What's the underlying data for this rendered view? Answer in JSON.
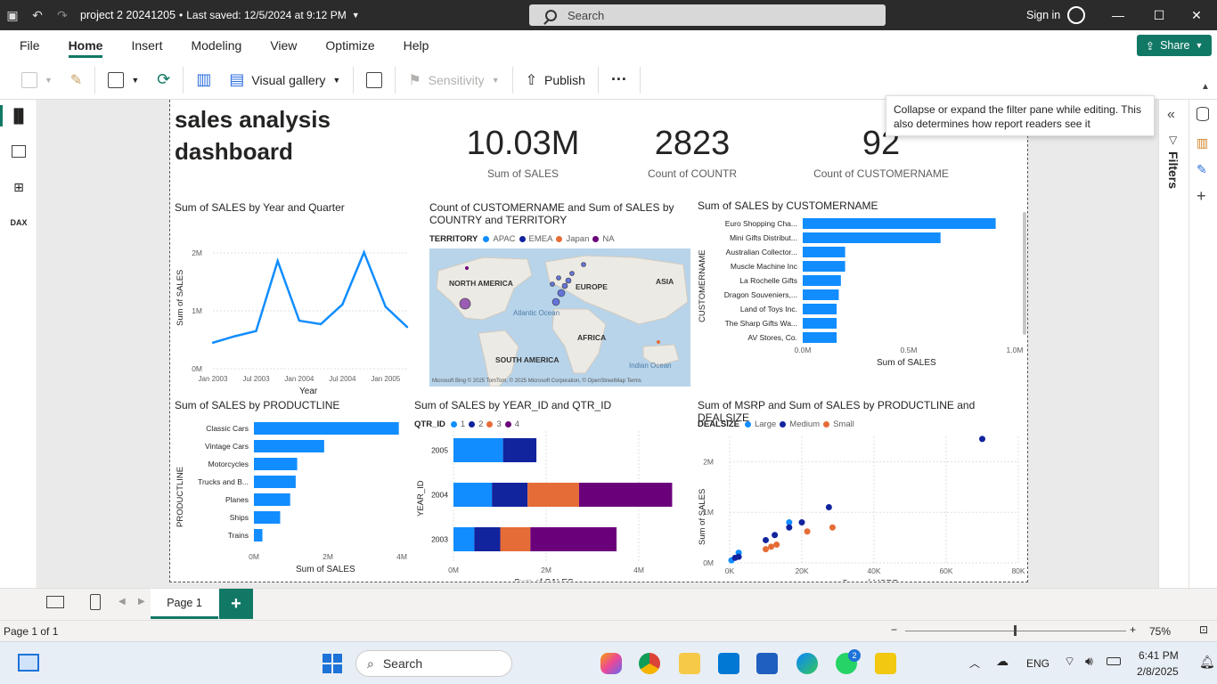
{
  "window": {
    "title": "project 2 20241205",
    "saved": "Last saved: 12/5/2024 at 9:12 PM",
    "search_placeholder": "Search",
    "signin": "Sign in"
  },
  "menu": [
    "File",
    "Home",
    "Insert",
    "Modeling",
    "View",
    "Optimize",
    "Help"
  ],
  "share_label": "Share",
  "toolbar": {
    "visual_gallery": "Visual gallery",
    "sensitivity": "Sensitivity",
    "publish": "Publish",
    "more": "···"
  },
  "tooltip": "Collapse or expand the filter pane while editing. This also determines how report readers see it",
  "filters_label": "Filters",
  "dashboard": {
    "title_line1": "sales analysis",
    "title_line2": "dashboard"
  },
  "kpis": [
    {
      "value": "10.03M",
      "label": "Sum of SALES"
    },
    {
      "value": "2823",
      "label": "Count of COUNTR"
    },
    {
      "value": "92",
      "label": "Count of CUSTOMERNAME"
    }
  ],
  "colors": {
    "accent": "#117865",
    "blue": "#118dff",
    "navy": "#12239e",
    "orange": "#e66c37",
    "purple": "#6b007b",
    "pink": "#e044a7"
  },
  "line_chart": {
    "title": "Sum of SALES by Year and Quarter",
    "xlabel": "Year",
    "ylabel": "Sum of SALES",
    "yticks": [
      "0M",
      "1M",
      "2M"
    ],
    "xticks": [
      "Jan 2003",
      "Jul 2003",
      "Jan 2004",
      "Jul 2004",
      "Jan 2005"
    ]
  },
  "map_chart": {
    "title": "Count of CUSTOMERNAME and Sum of SALES by COUNTRY and TERRITORY",
    "legend_title": "TERRITORY",
    "legend": [
      "APAC",
      "EMEA",
      "Japan",
      "NA"
    ],
    "labels": {
      "na": "NORTH AMERICA",
      "eu": "EUROPE",
      "asia": "ASIA",
      "atl": "Atlantic Ocean",
      "africa": "AFRICA",
      "sa": "SOUTH AMERICA",
      "indian": "Indian Ocean"
    },
    "attribution": "Microsoft Bing  © 2025 TomTom, © 2025 Microsoft Corporation, © OpenStreetMap  Terms"
  },
  "customer_chart": {
    "title": "Sum of SALES by CUSTOMERNAME",
    "xlabel": "Sum of SALES",
    "ylabel": "CUSTOMERNAME",
    "xticks": [
      "0.0M",
      "0.5M",
      "1.0M"
    ]
  },
  "product_chart": {
    "title": "Sum of SALES by PRODUCTLINE",
    "xlabel": "Sum of SALES",
    "ylabel": "PRODUCTLINE",
    "xticks": [
      "0M",
      "2M",
      "4M"
    ]
  },
  "year_chart": {
    "title": "Sum of SALES by YEAR_ID and QTR_ID",
    "legend_title": "QTR_ID",
    "legend": [
      "1",
      "2",
      "3",
      "4"
    ],
    "xlabel": "Sum of SALES",
    "ylabel": "YEAR_ID",
    "xticks": [
      "0M",
      "2M",
      "4M"
    ]
  },
  "scatter_chart": {
    "title": "Sum of MSRP and Sum of SALES by PRODUCTLINE and DEALSIZE",
    "legend_title": "DEALSIZE",
    "legend": [
      "Large",
      "Medium",
      "Small"
    ],
    "xlabel": "Sum of MSRP",
    "ylabel": "Sum of SALES",
    "xticks": [
      "0K",
      "20K",
      "40K",
      "60K",
      "80K"
    ],
    "yticks": [
      "0M",
      "1M",
      "2M"
    ]
  },
  "chart_data": [
    {
      "type": "line",
      "title": "Sum of SALES by Year and Quarter",
      "xlabel": "Year",
      "ylabel": "Sum of SALES",
      "x": [
        "2003 Q1",
        "2003 Q2",
        "2003 Q3",
        "2003 Q4",
        "2004 Q1",
        "2004 Q2",
        "2004 Q3",
        "2004 Q4",
        "2005 Q1",
        "2005 Q2"
      ],
      "values": [
        0.45,
        0.56,
        0.65,
        1.86,
        0.83,
        0.77,
        1.11,
        2.01,
        1.07,
        0.72
      ],
      "ylim": [
        0,
        2.4
      ]
    },
    {
      "type": "bar",
      "title": "Sum of SALES by CUSTOMERNAME",
      "categories": [
        "Euro Shopping Cha...",
        "Mini Gifts Distribut...",
        "Australian Collector...",
        "Muscle Machine Inc",
        "La Rochelle Gifts",
        "Dragon Souveniers,...",
        "Land of Toys Inc.",
        "The Sharp Gifts Wa...",
        "AV Stores, Co."
      ],
      "values": [
        0.91,
        0.65,
        0.2,
        0.2,
        0.18,
        0.17,
        0.16,
        0.16,
        0.16
      ],
      "xlim": [
        0,
        1.0
      ]
    },
    {
      "type": "bar",
      "title": "Sum of SALES by PRODUCTLINE",
      "categories": [
        "Classic Cars",
        "Vintage Cars",
        "Motorcycles",
        "Trucks and B...",
        "Planes",
        "Ships",
        "Trains"
      ],
      "values": [
        3.92,
        1.9,
        1.17,
        1.13,
        0.98,
        0.71,
        0.23
      ],
      "xlim": [
        0,
        4
      ]
    },
    {
      "type": "bar",
      "title": "Sum of SALES by YEAR_ID and QTR_ID",
      "categories": [
        "2005",
        "2004",
        "2003"
      ],
      "series": [
        {
          "name": "1",
          "values": [
            1.07,
            0.83,
            0.45
          ]
        },
        {
          "name": "2",
          "values": [
            0.72,
            0.77,
            0.56
          ]
        },
        {
          "name": "3",
          "values": [
            0,
            1.11,
            0.65
          ]
        },
        {
          "name": "4",
          "values": [
            0,
            2.01,
            1.86
          ]
        }
      ],
      "xlim": [
        0,
        4.8
      ]
    },
    {
      "type": "scatter",
      "title": "Sum of MSRP and Sum of SALES by PRODUCTLINE and DEALSIZE",
      "xlabel": "Sum of MSRP",
      "ylabel": "Sum of SALES",
      "series": [
        {
          "name": "Large",
          "points": [
            [
              500,
              0.05
            ],
            [
              2500,
              0.2
            ],
            [
              16500,
              0.8
            ]
          ]
        },
        {
          "name": "Medium",
          "points": [
            [
              1500,
              0.1
            ],
            [
              2500,
              0.12
            ],
            [
              10000,
              0.45
            ],
            [
              12500,
              0.55
            ],
            [
              16500,
              0.7
            ],
            [
              20000,
              0.8
            ],
            [
              27500,
              1.1
            ],
            [
              70000,
              2.45
            ]
          ]
        },
        {
          "name": "Small",
          "points": [
            [
              10000,
              0.27
            ],
            [
              11500,
              0.32
            ],
            [
              13000,
              0.36
            ],
            [
              21500,
              0.62
            ],
            [
              28500,
              0.7
            ]
          ]
        }
      ],
      "xlim": [
        0,
        80000
      ],
      "ylim": [
        0,
        2.5
      ]
    }
  ],
  "page_tab": "Page 1",
  "status": {
    "page": "Page 1 of 1",
    "zoom": "75%"
  },
  "taskbar": {
    "search": "Search",
    "lang": "ENG",
    "time": "6:41 PM",
    "date": "2/8/2025",
    "badge": "2"
  }
}
